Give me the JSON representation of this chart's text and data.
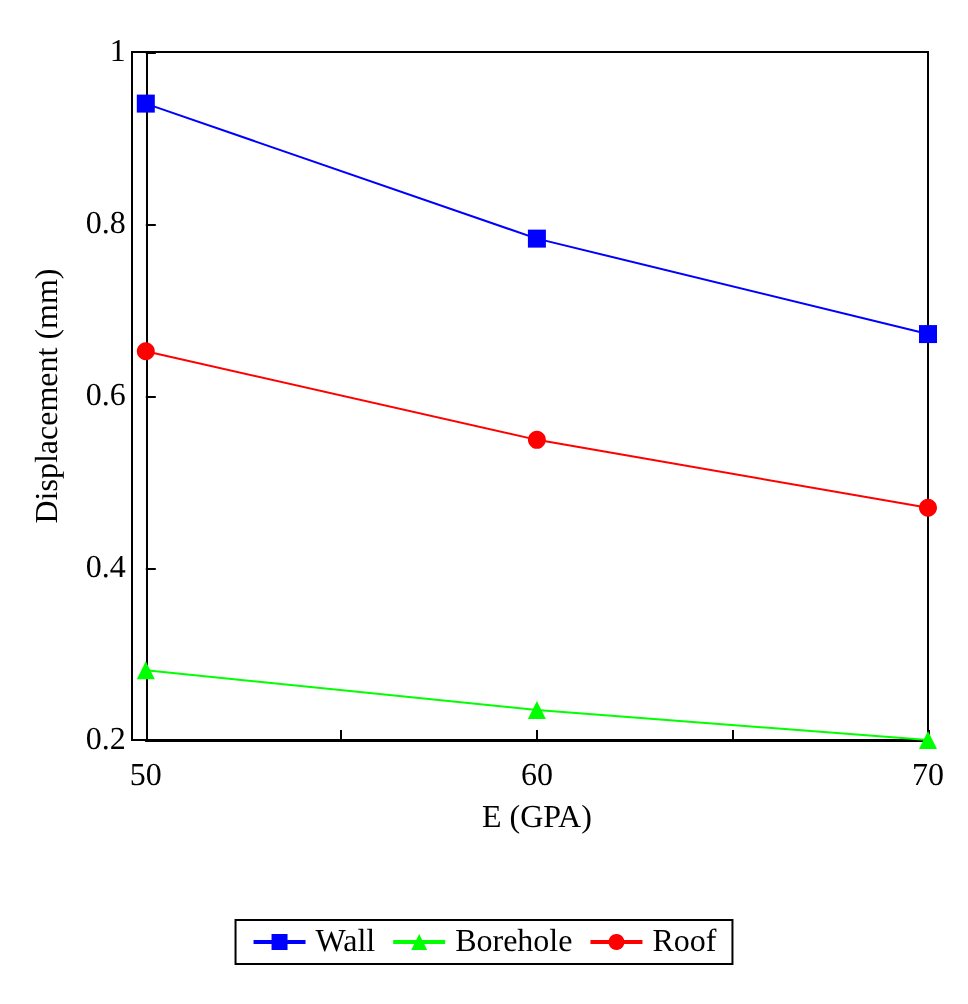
{
  "chart_data": {
    "type": "line",
    "xlabel": "E (GPA)",
    "ylabel": "Displacement (mm)",
    "x": [
      50,
      60,
      70
    ],
    "series": [
      {
        "name": "Wall",
        "color": "#0000ff",
        "values": [
          0.94,
          0.783,
          0.672
        ],
        "marker": "square"
      },
      {
        "name": "Borehole",
        "color": "#00ff00",
        "values": [
          0.281,
          0.235,
          0.2
        ],
        "marker": "triangle"
      },
      {
        "name": "Roof",
        "color": "#ff0000",
        "values": [
          0.652,
          0.549,
          0.47
        ],
        "marker": "circle"
      }
    ],
    "xlim": [
      50,
      70
    ],
    "xticks": [
      50,
      {
        "value": 55,
        "label": null
      },
      60,
      {
        "value": 65,
        "label": null
      },
      70
    ],
    "ylim": [
      0.2,
      1
    ],
    "yticks": [
      {
        "value": 0.2,
        "label": "0.2"
      },
      {
        "value": 0.4,
        "label": "0.4"
      },
      {
        "value": 0.6,
        "label": "0.6"
      },
      {
        "value": 0.8,
        "label": "0.8"
      },
      {
        "value": 1,
        "label": "1"
      }
    ],
    "grid": false,
    "legend": "bottom",
    "line_style": "solid"
  }
}
